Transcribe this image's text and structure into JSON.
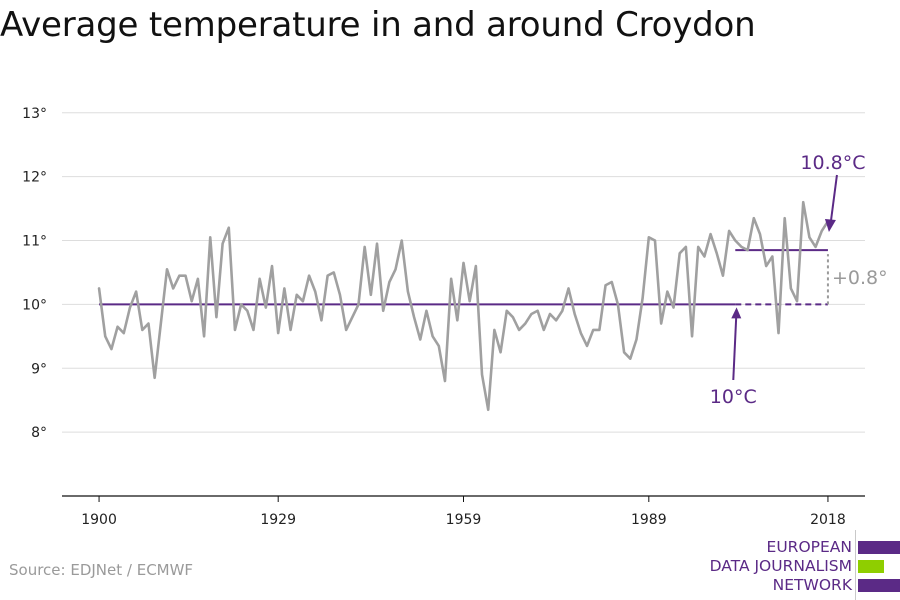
{
  "title": "Average temperature in and around Croydon",
  "source": "Source: EDJNet / ECMWF",
  "logo": {
    "lines": [
      "EUROPEAN",
      "DATA JOURNALISM",
      "NETWORK"
    ],
    "colors": [
      "#5b2a86",
      "#8fce00",
      "#5b2a86"
    ]
  },
  "colors": {
    "series": "#a0a0a0",
    "baseline": "#5b2a86",
    "recent": "#5b2a86",
    "difference": "#9a9a9a",
    "grid": "#dddddd",
    "axis": "#111111"
  },
  "chart_data": {
    "type": "line",
    "title": "Average temperature in and around Croydon",
    "xlabel": "",
    "ylabel": "",
    "x": [
      1900,
      1901,
      1902,
      1903,
      1904,
      1905,
      1906,
      1907,
      1908,
      1909,
      1910,
      1911,
      1912,
      1913,
      1914,
      1915,
      1916,
      1917,
      1918,
      1919,
      1920,
      1921,
      1922,
      1923,
      1924,
      1925,
      1926,
      1927,
      1928,
      1929,
      1930,
      1931,
      1932,
      1933,
      1934,
      1935,
      1936,
      1937,
      1938,
      1939,
      1940,
      1941,
      1942,
      1943,
      1944,
      1945,
      1946,
      1947,
      1948,
      1949,
      1950,
      1951,
      1952,
      1953,
      1954,
      1955,
      1956,
      1957,
      1958,
      1959,
      1960,
      1961,
      1962,
      1963,
      1964,
      1965,
      1966,
      1967,
      1968,
      1969,
      1970,
      1971,
      1972,
      1973,
      1974,
      1975,
      1976,
      1977,
      1978,
      1979,
      1980,
      1981,
      1982,
      1983,
      1984,
      1985,
      1986,
      1987,
      1988,
      1989,
      1990,
      1991,
      1992,
      1993,
      1994,
      1995,
      1996,
      1997,
      1998,
      1999,
      2000,
      2001,
      2002,
      2003,
      2004,
      2005,
      2006,
      2007,
      2008,
      2009,
      2010,
      2011,
      2012,
      2013,
      2014,
      2015,
      2016,
      2017,
      2018
    ],
    "series": [
      {
        "values": [
          10.25,
          9.5,
          9.3,
          9.65,
          9.55,
          9.95,
          10.2,
          9.6,
          9.7,
          8.85,
          9.7,
          10.55,
          10.25,
          10.45,
          10.45,
          10.05,
          10.4,
          9.5,
          11.05,
          9.8,
          10.95,
          11.2,
          9.6,
          10.0,
          9.9,
          9.6,
          10.4,
          9.95,
          10.6,
          9.55,
          10.25,
          9.6,
          10.15,
          10.05,
          10.45,
          10.2,
          9.75,
          10.45,
          10.5,
          10.15,
          9.6,
          9.8,
          10.0,
          10.9,
          10.15,
          10.95,
          9.9,
          10.35,
          10.55,
          11.0,
          10.2,
          9.8,
          9.45,
          9.9,
          9.5,
          9.35,
          8.8,
          10.4,
          9.75,
          10.65,
          10.05,
          10.6,
          8.9,
          8.35,
          9.6,
          9.25,
          9.9,
          9.8,
          9.6,
          9.7,
          9.85,
          9.9,
          9.6,
          9.85,
          9.75,
          9.9,
          10.25,
          9.85,
          9.55,
          9.35,
          9.6,
          9.6,
          10.3,
          10.35,
          10.0,
          9.25,
          9.15,
          9.45,
          10.1,
          11.05,
          11.0,
          9.7,
          10.2,
          9.95,
          10.8,
          10.9,
          9.5,
          10.9,
          10.75,
          11.1,
          10.8,
          10.45,
          11.15,
          11.0,
          10.9,
          10.85,
          11.35,
          11.1,
          10.6,
          10.75,
          9.55,
          11.35,
          10.25,
          10.05,
          11.6,
          11.05,
          10.9,
          11.15,
          11.3
        ]
      }
    ],
    "yticks": [
      8,
      9,
      10,
      11,
      12,
      13
    ],
    "ytick_labels": [
      "8°",
      "9°",
      "10°",
      "11°",
      "12°",
      "13°"
    ],
    "xticks": [
      1900,
      1929,
      1959,
      1989,
      2018
    ],
    "xtick_labels": [
      "1900",
      "1929",
      "1959",
      "1989",
      "2018"
    ],
    "xlim": [
      1894,
      2024
    ],
    "ylim": [
      7.0,
      13.2
    ],
    "grid": true,
    "reference_lines": [
      {
        "value": 10.0,
        "x_start": 1900,
        "x_end": 2003,
        "style": "solid"
      },
      {
        "value": 10.0,
        "x_start": 2003,
        "x_end": 2018,
        "style": "dashed"
      },
      {
        "value": 10.85,
        "x_start": 2003,
        "x_end": 2018,
        "style": "solid"
      }
    ],
    "annotations": {
      "baseline_label": "10°C",
      "recent_label": "10.8°C",
      "difference_label": "+0.8°"
    }
  }
}
